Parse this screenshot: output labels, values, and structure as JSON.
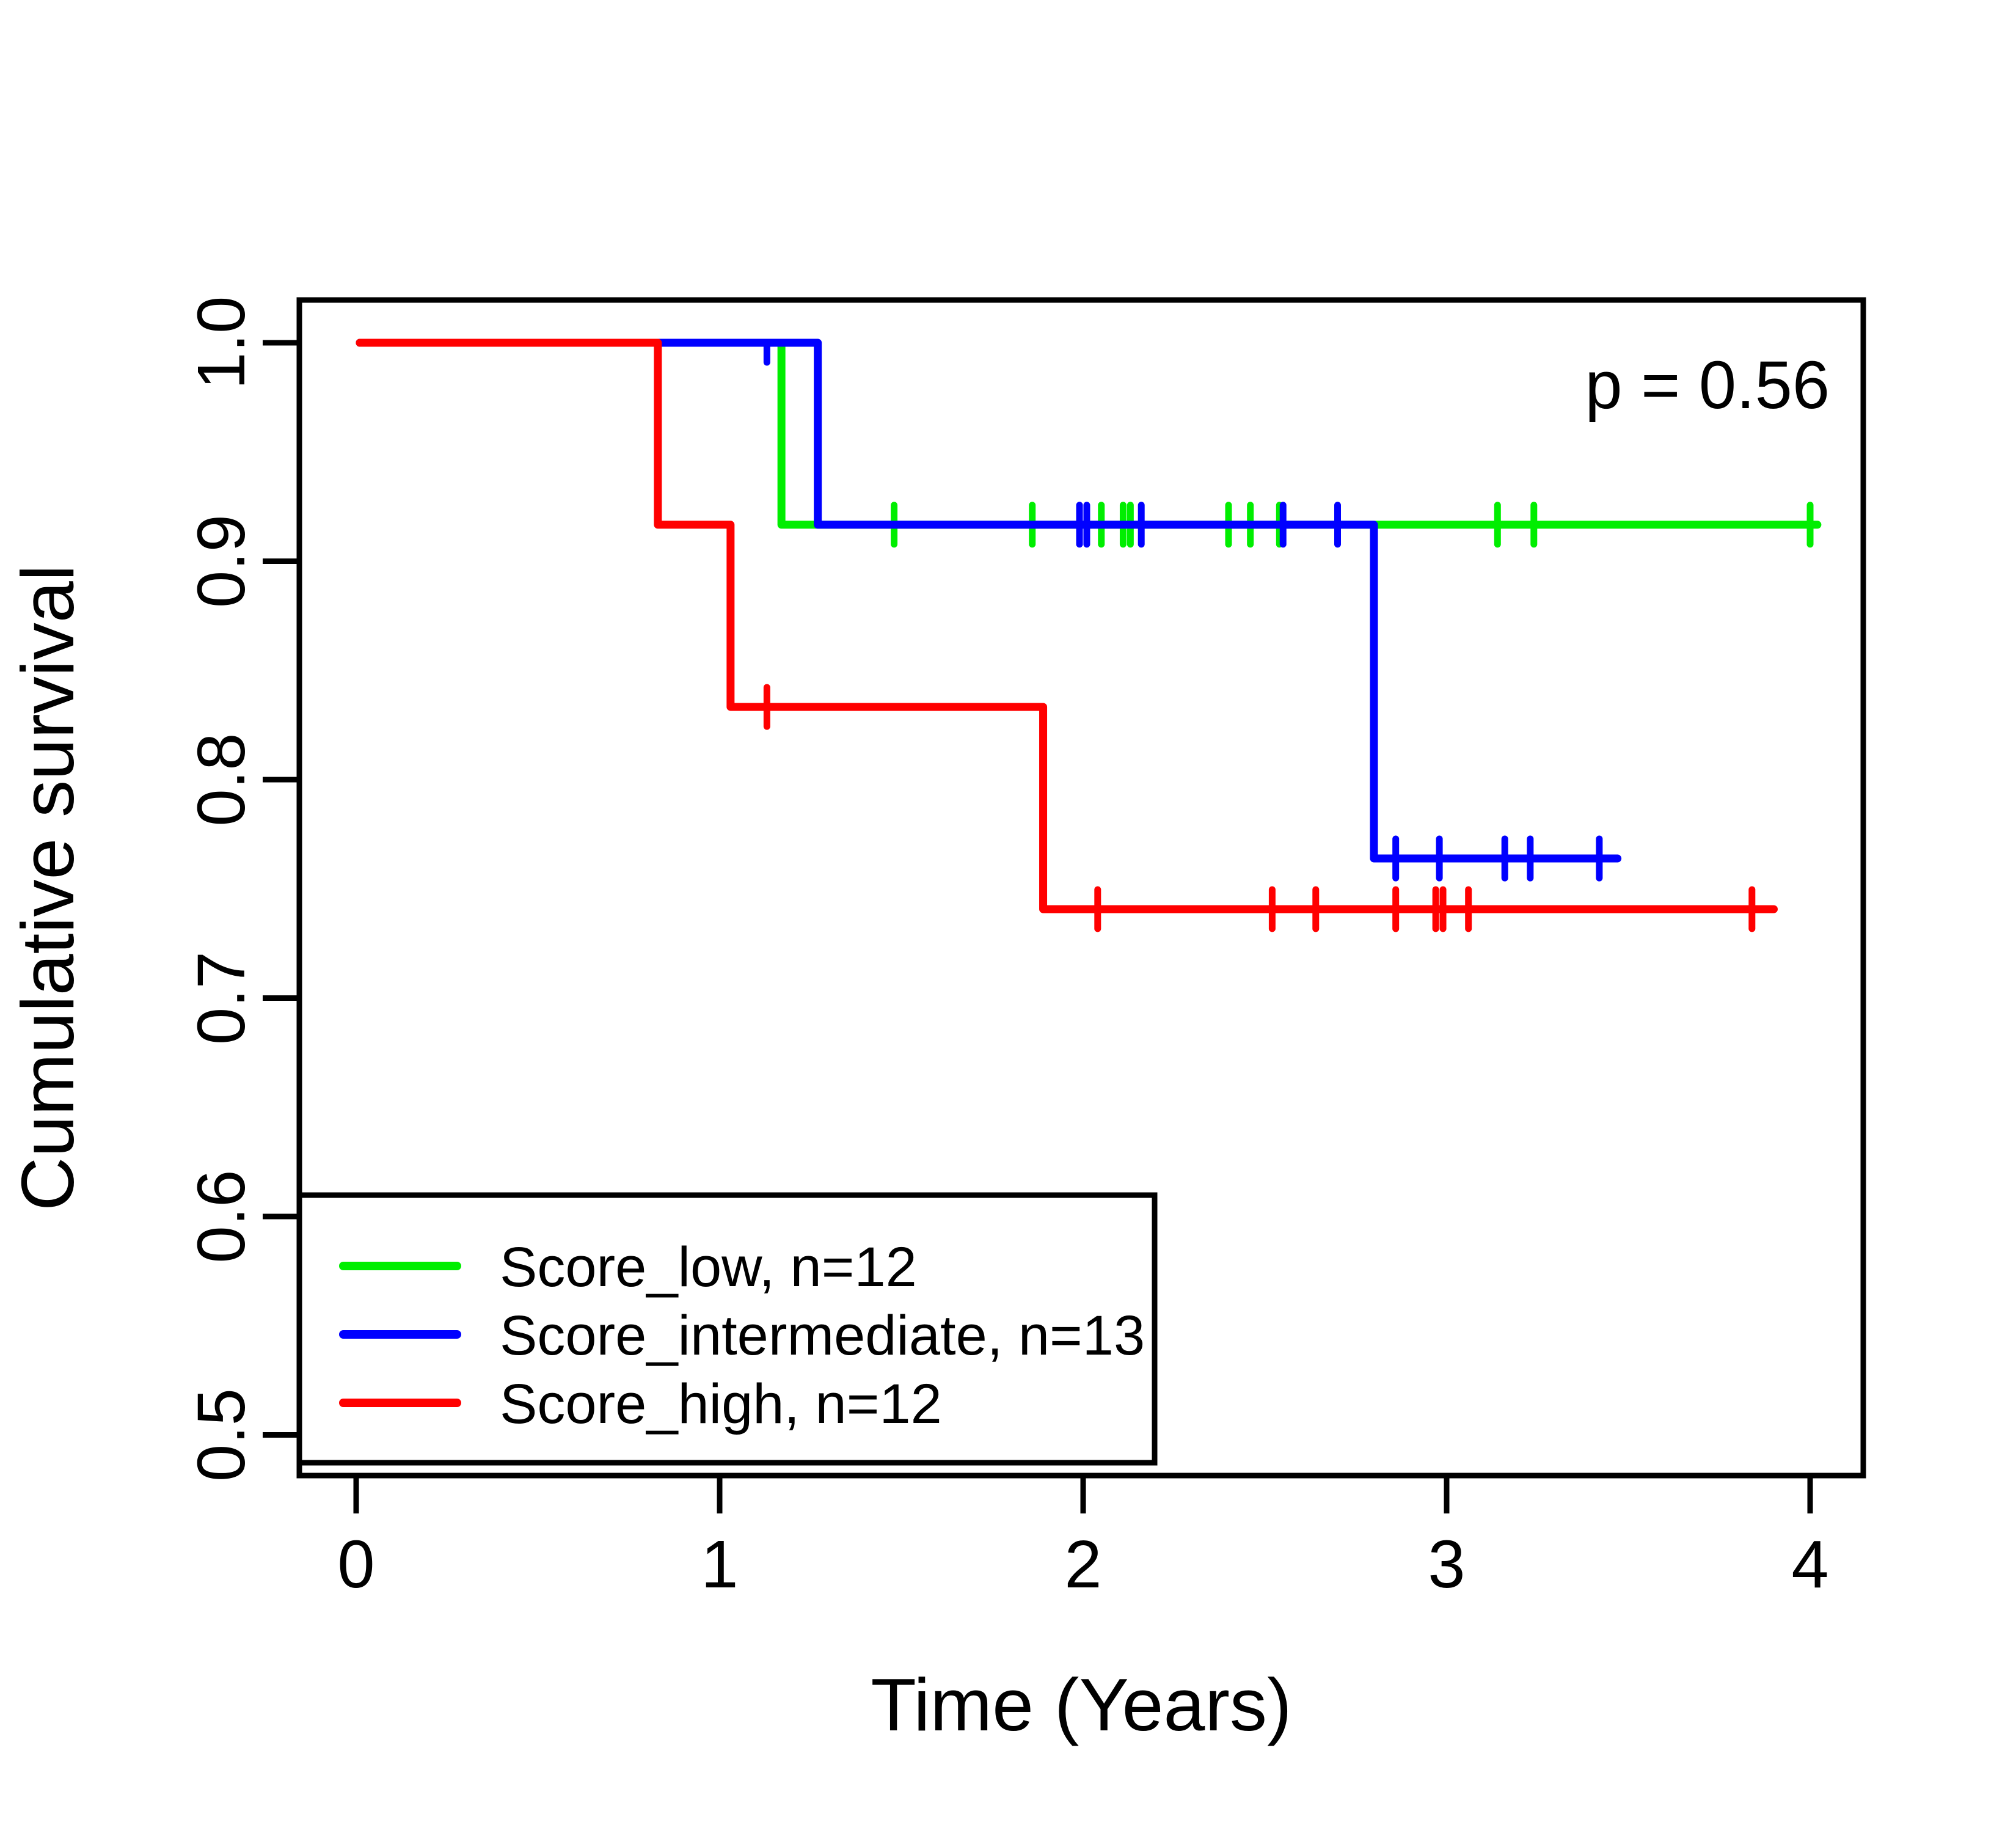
{
  "chart_data": {
    "type": "line",
    "subtype": "kaplan-meier-step-curves",
    "title": "",
    "p_label": "p = 0.56",
    "xlabel": "Time (Years)",
    "ylabel": "Cumulative survival",
    "xlim": [
      -0.16,
      4.16
    ],
    "ylim": [
      0.48,
      1.02
    ],
    "grid": false,
    "legend_position": "bottom-left",
    "axis_color": "#000000",
    "background_color": "#FFFFFF",
    "x_ticks": [
      {
        "label": "0",
        "value": 0
      },
      {
        "label": "1",
        "value": 1
      },
      {
        "label": "2",
        "value": 2
      },
      {
        "label": "3",
        "value": 3
      },
      {
        "label": "4",
        "value": 4
      }
    ],
    "y_ticks": [
      {
        "label": "1.0",
        "value": 1.0
      },
      {
        "label": "0.9",
        "value": 0.9
      },
      {
        "label": "0.8",
        "value": 0.8
      },
      {
        "label": "0.7",
        "value": 0.7
      },
      {
        "label": "0.6",
        "value": 0.6
      },
      {
        "label": "0.5",
        "value": 0.5
      }
    ],
    "series": [
      {
        "name": "Score_low",
        "n": 12,
        "label": "Score_low, n=12",
        "color": "#00EE00",
        "points": [
          [
            0.01,
            1.0
          ],
          [
            1.17,
            1.0
          ],
          [
            1.17,
            0.9167
          ],
          [
            4.02,
            0.9167
          ]
        ],
        "censors": [
          [
            1.48,
            0.9167
          ],
          [
            1.86,
            0.9167
          ],
          [
            2.05,
            0.9167
          ],
          [
            2.11,
            0.9167
          ],
          [
            2.13,
            0.9167
          ],
          [
            2.4,
            0.9167
          ],
          [
            2.46,
            0.9167
          ],
          [
            2.54,
            0.9167
          ],
          [
            3.14,
            0.9167
          ],
          [
            3.24,
            0.9167
          ],
          [
            4.0,
            0.9167
          ]
        ]
      },
      {
        "name": "Score_intermediate",
        "n": 13,
        "label": "Score_intermediate, n=13",
        "color": "#0000FF",
        "points": [
          [
            0.01,
            1.0
          ],
          [
            1.27,
            1.0
          ],
          [
            1.27,
            0.9167
          ],
          [
            2.8,
            0.9167
          ],
          [
            2.8,
            0.7639
          ],
          [
            3.47,
            0.7639
          ]
        ],
        "censors": [
          [
            1.13,
            1.0
          ],
          [
            1.99,
            0.9167
          ],
          [
            2.01,
            0.9167
          ],
          [
            2.16,
            0.9167
          ],
          [
            2.55,
            0.9167
          ],
          [
            2.7,
            0.9167
          ],
          [
            2.86,
            0.7639
          ],
          [
            2.98,
            0.7639
          ],
          [
            3.16,
            0.7639
          ],
          [
            3.23,
            0.7639
          ],
          [
            3.42,
            0.7639
          ]
        ]
      },
      {
        "name": "Score_high",
        "n": 12,
        "label": "Score_high, n=12",
        "color": "#FF0000",
        "points": [
          [
            0.01,
            1.0
          ],
          [
            0.83,
            1.0
          ],
          [
            0.83,
            0.9167
          ],
          [
            1.03,
            0.9167
          ],
          [
            1.03,
            0.8333
          ],
          [
            1.89,
            0.8333
          ],
          [
            1.89,
            0.7407
          ],
          [
            3.9,
            0.7407
          ]
        ],
        "censors": [
          [
            1.13,
            0.8333
          ],
          [
            2.04,
            0.7407
          ],
          [
            2.52,
            0.7407
          ],
          [
            2.64,
            0.7407
          ],
          [
            2.86,
            0.7407
          ],
          [
            2.97,
            0.7407
          ],
          [
            2.99,
            0.7407
          ],
          [
            3.06,
            0.7407
          ],
          [
            3.84,
            0.7407
          ]
        ]
      }
    ]
  }
}
